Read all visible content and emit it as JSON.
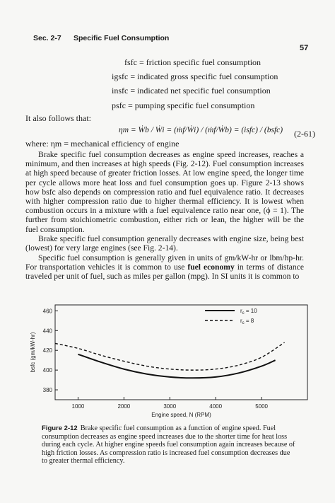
{
  "header": {
    "section": "Sec. 2-7",
    "title": "Specific Fuel Consumption",
    "page_number": "57"
  },
  "definitions": [
    "fsfc = friction specific fuel consumption",
    "igsfc = indicated gross specific fuel consumption",
    "insfc = indicated net specific fuel consumption",
    "psfc = pumping specific fuel consumption"
  ],
  "follows_text": "It also follows that:",
  "equation": {
    "text": "ηm = Ẇb / Ẇi = (ṁf/Ẇi) / (ṁf/Ẇb) = (isfc) / (bsfc)",
    "number": "(2-61)"
  },
  "where_text": "where:  ηm = mechanical efficiency of engine",
  "paragraphs": [
    "Brake specific fuel consumption decreases as engine speed increases, reaches a minimum, and then increases at high speeds (Fig. 2-12). Fuel consumption increases at high speed because of greater friction losses. At low engine speed, the longer time per cycle allows more heat loss and fuel consumption goes up. Figure 2-13 shows how bsfc also depends on compression ratio and fuel equivalence ratio. It decreases with higher compression ratio due to higher thermal efficiency. It is lowest when combustion occurs in a mixture with a fuel equivalence ratio near one, (ϕ = 1). The further from stoichiometric combustion, either rich or lean, the higher will be the fuel consumption.",
    "Brake specific fuel consumption generally decreases with engine size, being best (lowest) for very large engines (see Fig. 2-14)."
  ],
  "para3": {
    "before": "Specific fuel consumption is generally given in units of gm/kW-hr or lbm/hp-hr. For transportation vehicles it is common to use ",
    "bold": "fuel economy",
    "after": " in terms of distance traveled per unit of fuel, such as miles per gallon (mpg). In SI units it is common to"
  },
  "chart_data": {
    "type": "line",
    "xlabel": "Engine speed, N (RPM)",
    "ylabel": "bsfc (gm/kW-hr)",
    "x_ticks": [
      1000,
      2000,
      3000,
      4000,
      5000
    ],
    "y_ticks": [
      380,
      400,
      420,
      440,
      460
    ],
    "xlim": [
      500,
      6000
    ],
    "ylim": [
      370,
      466
    ],
    "legend_position": "top-right",
    "series": [
      {
        "name": "rc = 10",
        "style": "solid",
        "x": [
          1000,
          1500,
          2000,
          2500,
          3000,
          3500,
          4000,
          4500,
          5000,
          5300
        ],
        "y": [
          416,
          408,
          401,
          396,
          393,
          392,
          393,
          397,
          404,
          410
        ]
      },
      {
        "name": "rc = 8",
        "style": "dashed",
        "x": [
          500,
          1000,
          1500,
          2000,
          2500,
          3000,
          3500,
          4000,
          4500,
          5000,
          5500
        ],
        "y": [
          427,
          422,
          415,
          409,
          404,
          401,
          400,
          401,
          405,
          413,
          428
        ]
      }
    ],
    "legend_labels": [
      "r_c = 10",
      "r_c = 8"
    ]
  },
  "caption": {
    "label": "Figure 2-12",
    "text": "Brake specific fuel consumption as a function of engine speed. Fuel consumption decreases as engine speed increases due to the shorter time for heat loss during each cycle. At higher engine speeds fuel consumption again increases because of high friction losses. As compression ratio is increased fuel consumption decreases due to greater thermal efficiency."
  }
}
